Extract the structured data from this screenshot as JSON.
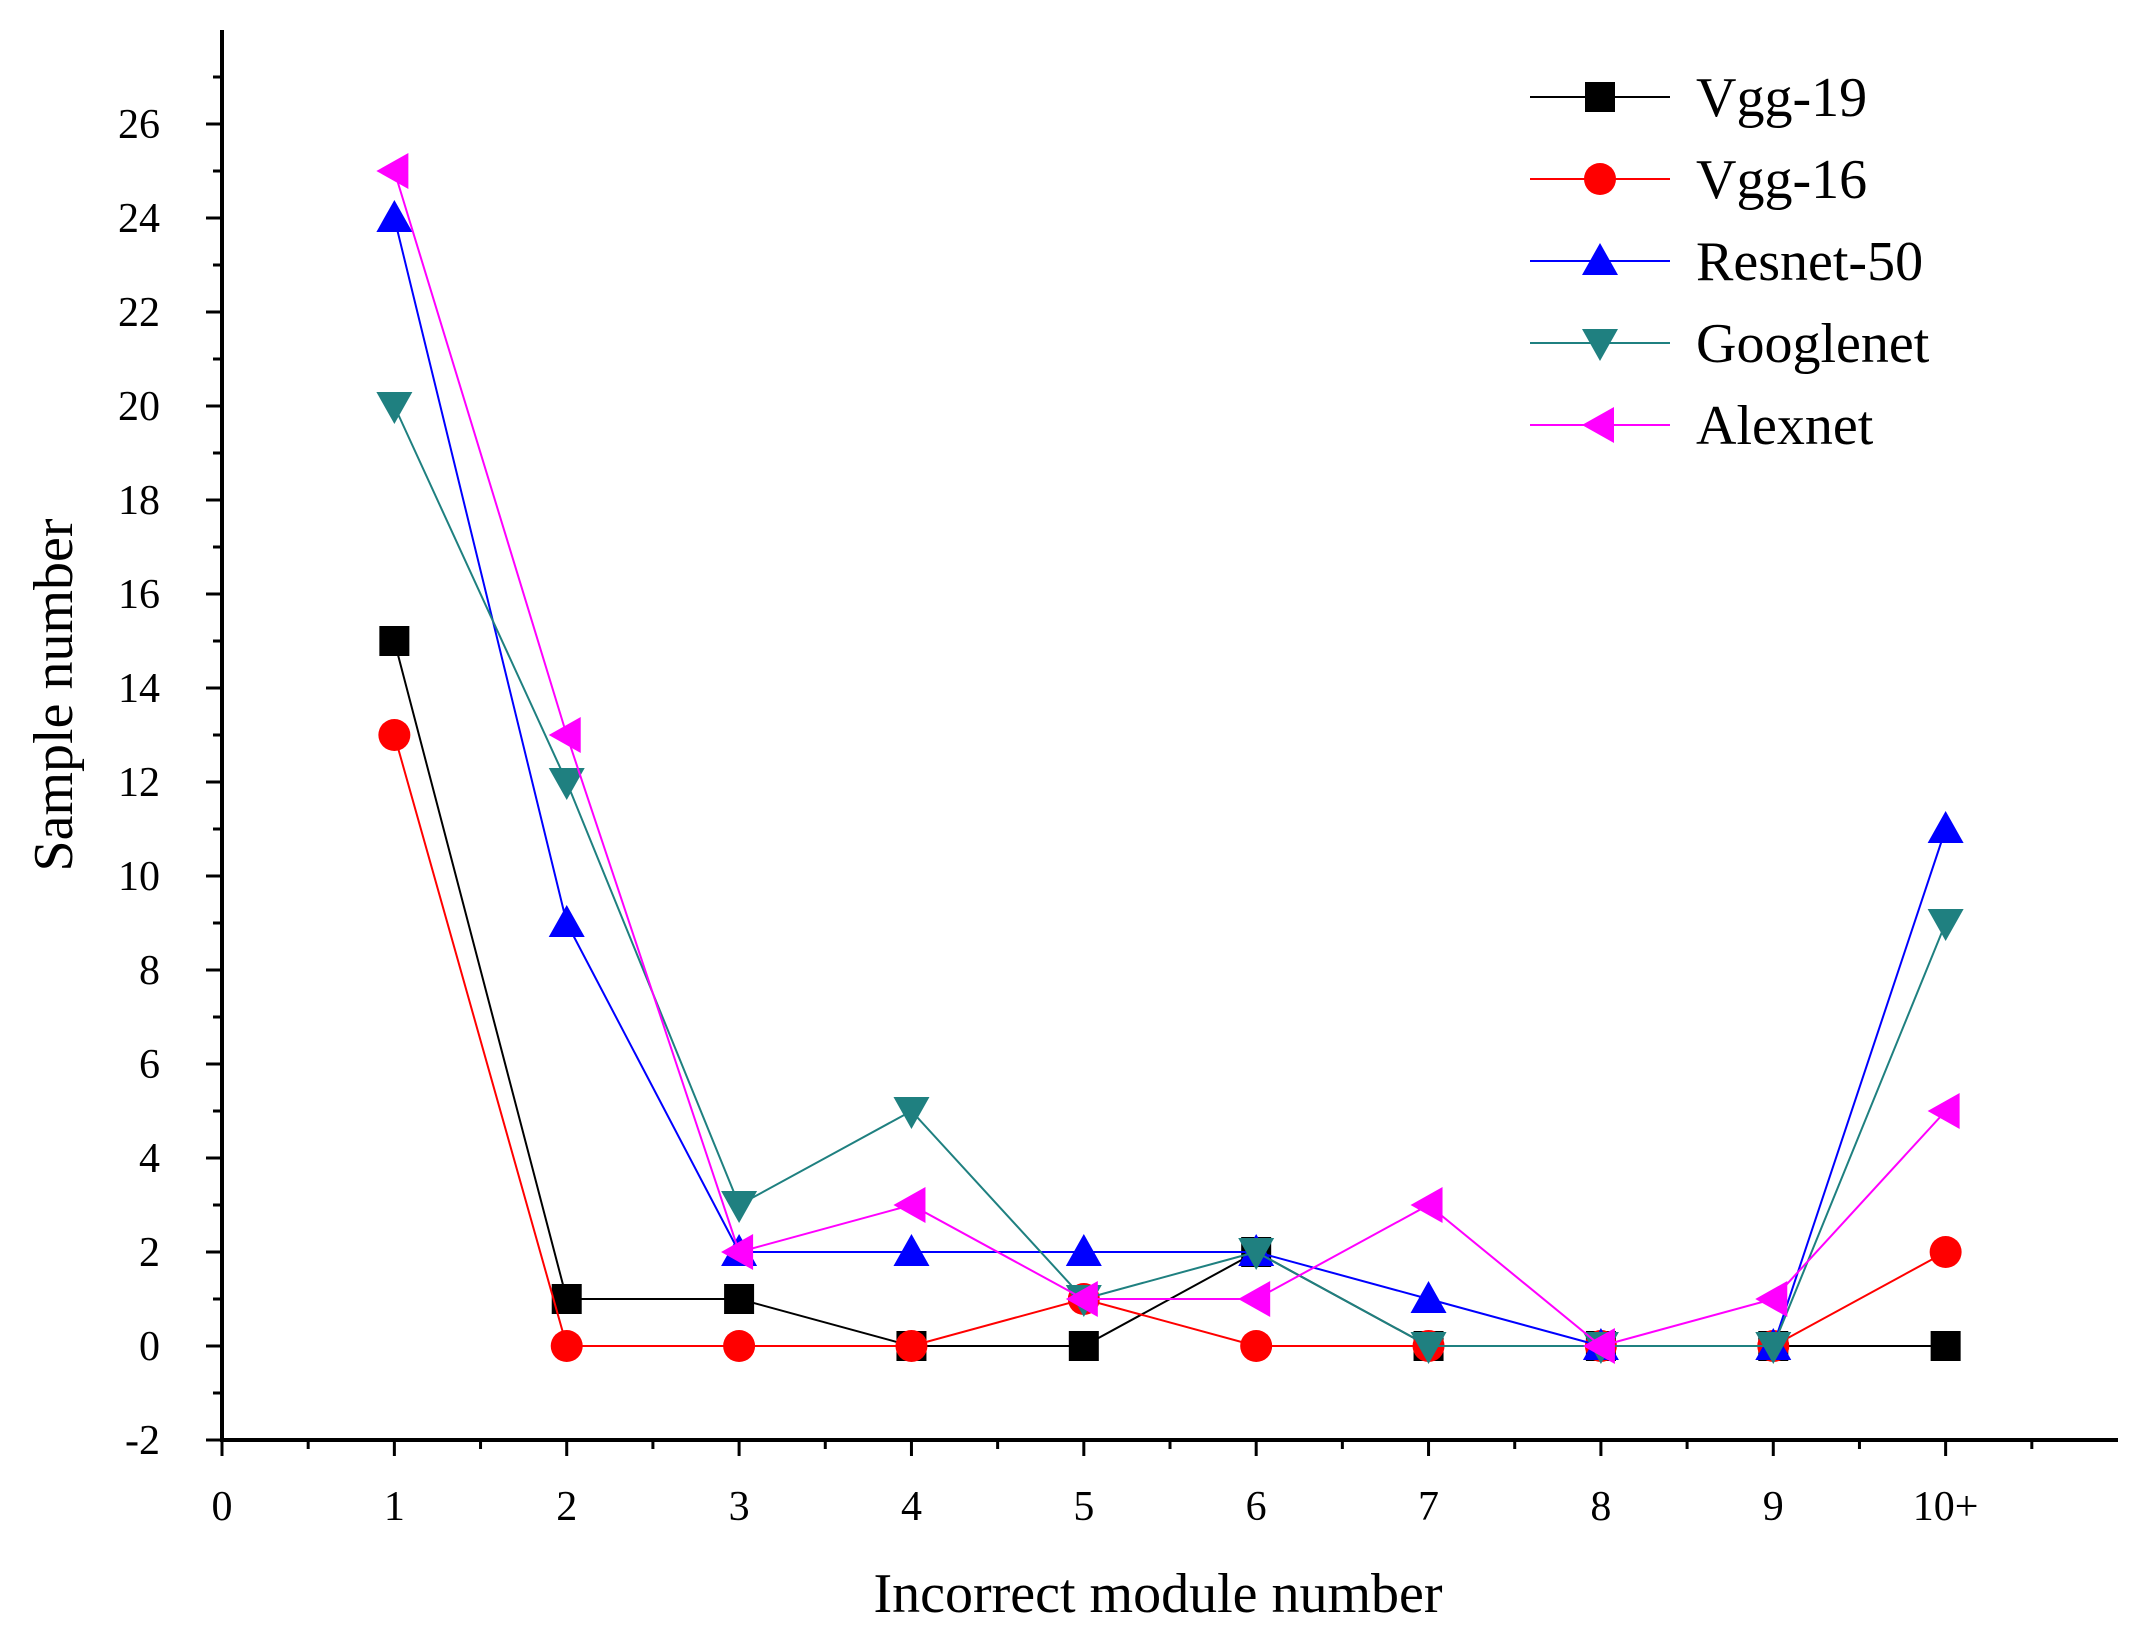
{
  "chart_data": {
    "type": "line",
    "title": "",
    "xlabel": "Incorrect module number",
    "ylabel": "Sample number",
    "x_tick_labels": [
      "0",
      "1",
      "2",
      "3",
      "4",
      "5",
      "6",
      "7",
      "8",
      "9",
      "10+"
    ],
    "x_positions": [
      1,
      2,
      3,
      4,
      5,
      6,
      7,
      8,
      9,
      10
    ],
    "xlim": [
      0,
      11
    ],
    "ylim": [
      -2,
      28
    ],
    "y_ticks": [
      -2,
      0,
      2,
      4,
      6,
      8,
      10,
      12,
      14,
      16,
      18,
      20,
      22,
      24,
      26
    ],
    "legend_position": "top-right",
    "series": [
      {
        "name": "Vgg-19",
        "marker": "square",
        "color": "#000000",
        "values": [
          15,
          1,
          1,
          0,
          0,
          2,
          0,
          0,
          0,
          0
        ]
      },
      {
        "name": "Vgg-16",
        "marker": "circle",
        "color": "#ff0000",
        "values": [
          13,
          0,
          0,
          0,
          1,
          0,
          0,
          0,
          0,
          2
        ]
      },
      {
        "name": "Resnet-50",
        "marker": "triangle-up",
        "color": "#0000ff",
        "values": [
          24,
          9,
          2,
          2,
          2,
          2,
          1,
          0,
          0,
          11
        ]
      },
      {
        "name": "Googlenet",
        "marker": "triangle-down",
        "color": "#1f8080",
        "values": [
          20,
          12,
          3,
          5,
          1,
          2,
          0,
          0,
          0,
          9
        ]
      },
      {
        "name": "Alexnet",
        "marker": "triangle-left",
        "color": "#ff00ff",
        "values": [
          25,
          13,
          2,
          3,
          1,
          1,
          3,
          0,
          1,
          5
        ]
      }
    ]
  }
}
